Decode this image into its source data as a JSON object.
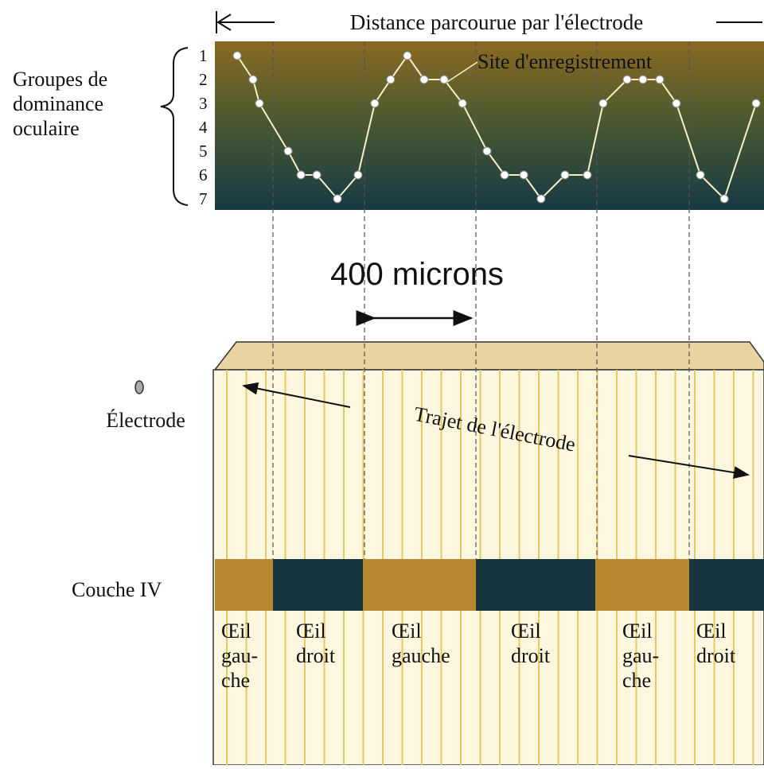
{
  "header": {
    "title": "Distance parcourue par l'électrode"
  },
  "dominance_plot": {
    "axis_label": [
      "Groupes de",
      "dominance",
      "oculaire"
    ],
    "groups": [
      1,
      2,
      3,
      4,
      5,
      6,
      7
    ],
    "annotation": "Site d'enregistrement",
    "distance_um": [
      0,
      57,
      80,
      183,
      229,
      286,
      360,
      434,
      494,
      551,
      611,
      671,
      743,
      809,
      897,
      960,
      1029,
      1091,
      1177,
      1257,
      1314,
      1400,
      1457,
      1517,
      1577,
      1663,
      1749,
      1863
    ],
    "group_values": [
      1,
      2,
      3,
      5,
      6,
      6,
      7,
      6,
      3,
      2,
      1,
      2,
      2,
      3,
      5,
      6,
      6,
      7,
      6,
      6,
      3,
      2,
      2,
      2,
      3,
      6,
      7,
      3
    ]
  },
  "scale_bar": {
    "label": "400 microns"
  },
  "cortex": {
    "electrode_label": "Électrode",
    "path_label": "Trajet de l'électrode",
    "layer_label": "Couche IV",
    "columns": [
      {
        "lines": [
          "Œil",
          "gau-",
          "che"
        ]
      },
      {
        "lines": [
          "Œil",
          "droit"
        ]
      },
      {
        "lines": [
          "Œil",
          "gauche"
        ]
      },
      {
        "lines": [
          "Œil",
          "droit"
        ]
      },
      {
        "lines": [
          "Œil",
          "gau-",
          "che"
        ]
      },
      {
        "lines": [
          "Œil",
          "droit"
        ]
      }
    ]
  }
}
